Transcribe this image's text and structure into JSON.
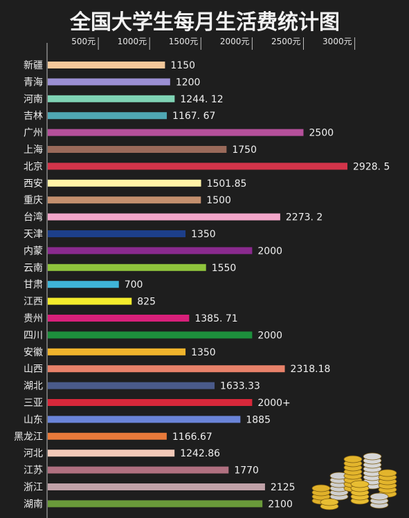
{
  "chart_data": {
    "type": "bar",
    "orientation": "horizontal",
    "title": "全国大学生每月生活费统计图",
    "xlabel": "",
    "ylabel": "",
    "xlim": [
      0,
      3200
    ],
    "grid": false,
    "ticks": [
      {
        "value": 500,
        "label": "500元"
      },
      {
        "value": 1000,
        "label": "1000元"
      },
      {
        "value": 1500,
        "label": "1500元"
      },
      {
        "value": 2000,
        "label": "2000元"
      },
      {
        "value": 2500,
        "label": "2500元"
      },
      {
        "value": 3000,
        "label": "3000元"
      }
    ],
    "bars": [
      {
        "category": "新疆",
        "value": 1150,
        "label": "1150",
        "color": "#f3c79a"
      },
      {
        "category": "青海",
        "value": 1200,
        "label": "1200",
        "color": "#9b8fd3"
      },
      {
        "category": "河南",
        "value": 1244.12,
        "label": "1244. 12",
        "color": "#7fd3b4"
      },
      {
        "category": "吉林",
        "value": 1167.67,
        "label": "1167. 67",
        "color": "#4fa7b3"
      },
      {
        "category": "广州",
        "value": 2500,
        "label": "2500",
        "color": "#b5509b"
      },
      {
        "category": "上海",
        "value": 1750,
        "label": "1750",
        "color": "#9a6a5a"
      },
      {
        "category": "北京",
        "value": 2928.5,
        "label": "2928. 5",
        "color": "#d3344a"
      },
      {
        "category": "西安",
        "value": 1501.85,
        "label": "1501.85",
        "color": "#fff2a6"
      },
      {
        "category": "重庆",
        "value": 1500,
        "label": "1500",
        "color": "#c4906e"
      },
      {
        "category": "台湾",
        "value": 2273.2,
        "label": "2273. 2",
        "color": "#f2a6c9"
      },
      {
        "category": "天津",
        "value": 1350,
        "label": "1350",
        "color": "#1d3f8a"
      },
      {
        "category": "内蒙",
        "value": 2000,
        "label": "2000",
        "color": "#8a2a8e"
      },
      {
        "category": "云南",
        "value": 1550,
        "label": "1550",
        "color": "#8fc43c"
      },
      {
        "category": "甘肃",
        "value": 700,
        "label": "700",
        "color": "#3fb5d8"
      },
      {
        "category": "江西",
        "value": 825,
        "label": "825",
        "color": "#f4ec2c"
      },
      {
        "category": "贵州",
        "value": 1385.71,
        "label": "1385. 71",
        "color": "#d8207a"
      },
      {
        "category": "四川",
        "value": 2000,
        "label": "2000",
        "color": "#1d8f3c"
      },
      {
        "category": "安徽",
        "value": 1350,
        "label": "1350",
        "color": "#f0b42c"
      },
      {
        "category": "山西",
        "value": 2318.18,
        "label": "2318.18",
        "color": "#e8826a"
      },
      {
        "category": "湖北",
        "value": 1633.33,
        "label": "1633.33",
        "color": "#4a5a8a"
      },
      {
        "category": "三亚",
        "value": 2000,
        "label": "2000+",
        "color": "#d8283a"
      },
      {
        "category": "山东",
        "value": 1885,
        "label": "1885",
        "color": "#6a84d8"
      },
      {
        "category": "黑龙江",
        "value": 1166.67,
        "label": "1166.67",
        "color": "#e87a3a"
      },
      {
        "category": "河北",
        "value": 1242.86,
        "label": "1242.86",
        "color": "#f3c9b8"
      },
      {
        "category": "江苏",
        "value": 1770,
        "label": "1770",
        "color": "#b07080"
      },
      {
        "category": "浙江",
        "value": 2125,
        "label": "2125",
        "color": "#c0a2a8"
      },
      {
        "category": "湖南",
        "value": 2100,
        "label": "2100",
        "color": "#6a9a3a"
      }
    ]
  }
}
